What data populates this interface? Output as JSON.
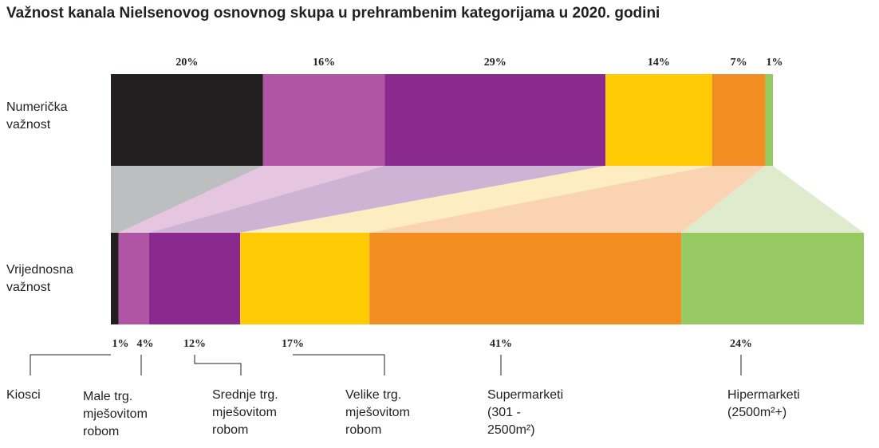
{
  "chart_data": {
    "type": "bar",
    "title": "Važnost kanala Nielsenovog osnovnog skupa u prehrambenim kategorijama u 2020. godini",
    "categories": [
      "Kiosci",
      "Male trg. mješovitom robom",
      "Srednje trg. mješovitom robom",
      "Velike trg. mješovitom robom",
      "Supermarketi (301 - 2500m²)",
      "Hipermarketi (2500m²+)"
    ],
    "category_lines": [
      [
        "Kiosci"
      ],
      [
        "Male trg.",
        "mješovitom",
        "robom"
      ],
      [
        "Srednje trg.",
        "mješovitom",
        "robom"
      ],
      [
        "Velike trg.",
        "mješovitom",
        "robom"
      ],
      [
        "Supermarketi",
        "(301 -",
        "2500m²)"
      ],
      [
        "Hipermarketi",
        "(2500m²+)"
      ]
    ],
    "series": [
      {
        "name": "Numerička važnost",
        "label_lines": [
          "Numerička",
          "važnost"
        ],
        "values": [
          20,
          16,
          29,
          14,
          7,
          1
        ]
      },
      {
        "name": "Vrijednosna važnost",
        "label_lines": [
          "Vrijednosna",
          "važnost"
        ],
        "values": [
          1,
          4,
          12,
          17,
          41,
          24
        ]
      }
    ],
    "value_suffix": "%",
    "stacked_percent": true,
    "colors": [
      "#231f20",
      "#b055a3",
      "#8a2a8f",
      "#ffcb05",
      "#f18d21",
      "#97c962"
    ],
    "connector_colors": [
      "#bcbec0",
      "#e6c5e1",
      "#cfb3d4",
      "#fdedc0",
      "#fad3b3",
      "#deebcc"
    ]
  }
}
